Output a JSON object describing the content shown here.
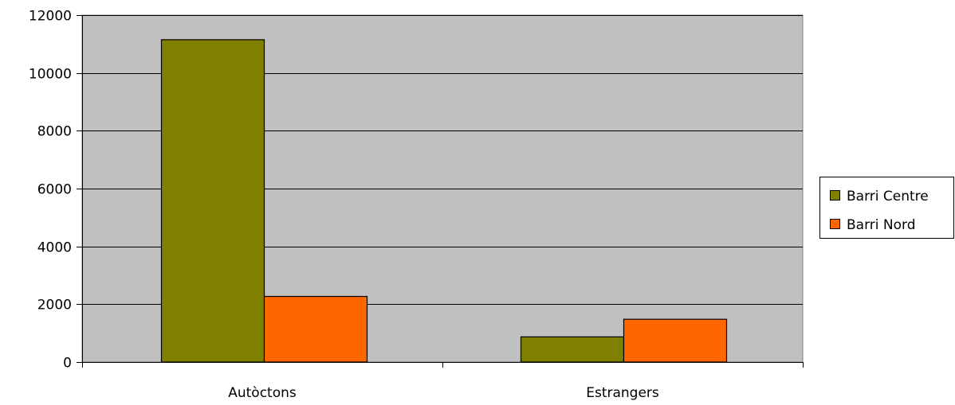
{
  "chart_data": {
    "type": "bar",
    "categories": [
      "Autòctons",
      "Estrangers"
    ],
    "series": [
      {
        "name": "Barri Centre",
        "values": [
          11150,
          870
        ]
      },
      {
        "name": "Barri Nord",
        "values": [
          2270,
          1480
        ]
      }
    ],
    "ylim": [
      0,
      12000
    ],
    "yticks": [
      "0",
      "2000",
      "4000",
      "6000",
      "8000",
      "10000",
      "12000"
    ],
    "grid": true,
    "legend_placement": "right",
    "colors": {
      "plot_background": "#c0c0c0",
      "series": [
        "#808000",
        "#ff6600"
      ],
      "gridline": "#000000"
    }
  }
}
